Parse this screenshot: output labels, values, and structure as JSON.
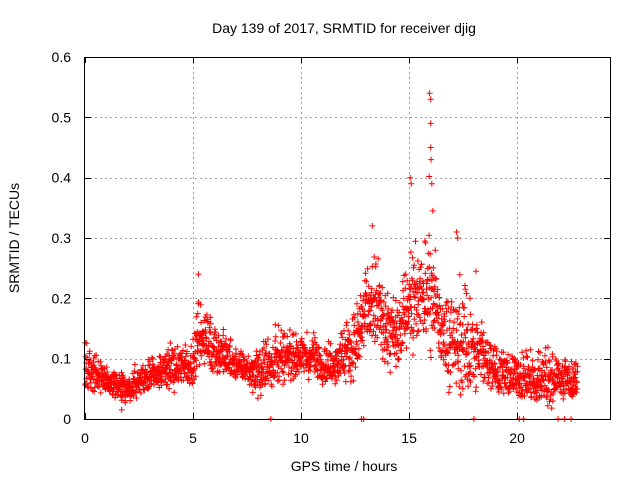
{
  "chart_data": {
    "type": "scatter",
    "title": "Day 139 of 2017, SRMTID for receiver djig",
    "xlabel": "GPS time / hours",
    "ylabel": "SRMTID / TECUs",
    "xlim": [
      0,
      24.3
    ],
    "ylim": [
      0,
      0.6
    ],
    "xticks": [
      0,
      5,
      10,
      15,
      20
    ],
    "yticks": [
      0,
      0.1,
      0.2,
      0.3,
      0.4,
      0.5,
      0.6
    ],
    "xtick_labels": [
      "0",
      "5",
      "10",
      "15",
      "20"
    ],
    "ytick_labels": [
      "0",
      "0.1",
      "0.2",
      "0.3",
      "0.4",
      "0.5",
      "0.6"
    ],
    "grid": true,
    "marker": "+",
    "color": "#ff0000",
    "series": [
      {
        "name": "SRMTID",
        "envelope": {
          "x": [
            0.0,
            0.5,
            1.0,
            1.5,
            2.0,
            2.5,
            3.0,
            3.5,
            4.0,
            4.5,
            5.0,
            5.3,
            5.6,
            6.0,
            6.5,
            7.0,
            7.5,
            8.0,
            8.5,
            9.0,
            9.5,
            10.0,
            10.5,
            11.0,
            11.5,
            12.0,
            12.5,
            13.0,
            13.5,
            14.0,
            14.5,
            15.0,
            15.3,
            15.6,
            16.0,
            16.2,
            16.5,
            17.0,
            17.5,
            18.0,
            18.5,
            19.0,
            19.5,
            20.0,
            20.5,
            21.0,
            21.5,
            22.0,
            22.5,
            22.8
          ],
          "mean": [
            0.08,
            0.075,
            0.06,
            0.05,
            0.05,
            0.06,
            0.07,
            0.075,
            0.08,
            0.085,
            0.09,
            0.14,
            0.13,
            0.11,
            0.1,
            0.09,
            0.08,
            0.075,
            0.09,
            0.1,
            0.1,
            0.1,
            0.1,
            0.09,
            0.09,
            0.1,
            0.12,
            0.17,
            0.18,
            0.14,
            0.13,
            0.19,
            0.2,
            0.2,
            0.21,
            0.19,
            0.14,
            0.12,
            0.12,
            0.11,
            0.1,
            0.08,
            0.07,
            0.065,
            0.065,
            0.065,
            0.06,
            0.065,
            0.06,
            0.055
          ],
          "peak": [
            0.16,
            0.14,
            0.1,
            0.09,
            0.1,
            0.11,
            0.12,
            0.13,
            0.15,
            0.15,
            0.16,
            0.24,
            0.21,
            0.19,
            0.17,
            0.14,
            0.12,
            0.15,
            0.18,
            0.19,
            0.17,
            0.16,
            0.17,
            0.15,
            0.15,
            0.17,
            0.24,
            0.29,
            0.32,
            0.24,
            0.26,
            0.29,
            0.4,
            0.28,
            0.54,
            0.34,
            0.24,
            0.28,
            0.31,
            0.24,
            0.2,
            0.16,
            0.14,
            0.13,
            0.14,
            0.16,
            0.15,
            0.13,
            0.12,
            0.11
          ]
        },
        "highlights": [
          {
            "x": 5.25,
            "y": 0.24
          },
          {
            "x": 13.3,
            "y": 0.32
          },
          {
            "x": 15.05,
            "y": 0.4
          },
          {
            "x": 15.1,
            "y": 0.39
          },
          {
            "x": 15.95,
            "y": 0.54
          },
          {
            "x": 16.0,
            "y": 0.53
          },
          {
            "x": 16.0,
            "y": 0.49
          },
          {
            "x": 16.0,
            "y": 0.45
          },
          {
            "x": 16.02,
            "y": 0.43
          },
          {
            "x": 16.05,
            "y": 0.39
          },
          {
            "x": 16.1,
            "y": 0.345
          },
          {
            "x": 17.2,
            "y": 0.31
          },
          {
            "x": 17.25,
            "y": 0.3
          },
          {
            "x": 18.1,
            "y": 0.245
          },
          {
            "x": 1.7,
            "y": 0.015
          },
          {
            "x": 8.6,
            "y": 0.0
          },
          {
            "x": 12.8,
            "y": 0.0
          },
          {
            "x": 12.9,
            "y": 0.0
          },
          {
            "x": 18.0,
            "y": 0.0
          },
          {
            "x": 20.1,
            "y": 0.0
          },
          {
            "x": 20.3,
            "y": 0.0
          },
          {
            "x": 21.9,
            "y": 0.0
          },
          {
            "x": 22.2,
            "y": 0.0
          },
          {
            "x": 22.5,
            "y": 0.0
          }
        ]
      }
    ]
  }
}
